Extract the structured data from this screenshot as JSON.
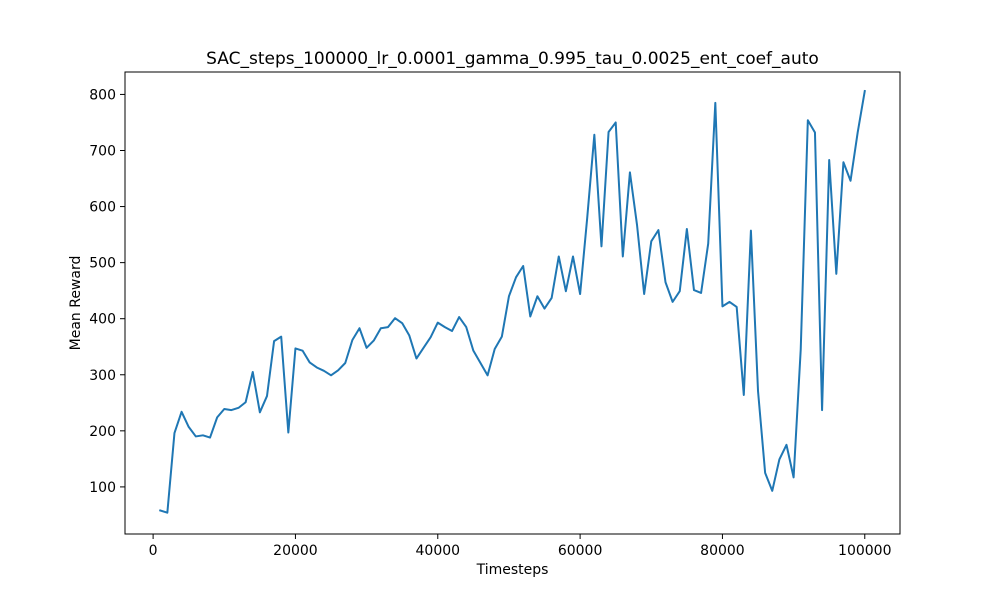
{
  "chart_data": {
    "type": "line",
    "title": "SAC_steps_100000_lr_0.0001_gamma_0.995_tau_0.0025_ent_coef_auto",
    "xlabel": "Timesteps",
    "ylabel": "Mean Reward",
    "xlim": [
      -3950,
      104950
    ],
    "ylim": [
      16,
      840
    ],
    "xticks": [
      0,
      20000,
      40000,
      60000,
      80000,
      100000
    ],
    "yticks": [
      100,
      200,
      300,
      400,
      500,
      600,
      700,
      800
    ],
    "grid": false,
    "series": [
      {
        "color": "#1f77b4",
        "x": [
          1000,
          2000,
          3000,
          4000,
          5000,
          6000,
          7000,
          8000,
          9000,
          10000,
          11000,
          12000,
          13000,
          14000,
          15000,
          16000,
          17000,
          18000,
          19000,
          20000,
          21000,
          22000,
          23000,
          24000,
          25000,
          26000,
          27000,
          28000,
          29000,
          30000,
          31000,
          32000,
          33000,
          34000,
          35000,
          36000,
          37000,
          38000,
          39000,
          40000,
          41000,
          42000,
          43000,
          44000,
          45000,
          46000,
          47000,
          48000,
          49000,
          50000,
          51000,
          52000,
          53000,
          54000,
          55000,
          56000,
          57000,
          58000,
          59000,
          60000,
          61000,
          62000,
          63000,
          64000,
          65000,
          66000,
          67000,
          68000,
          69000,
          70000,
          71000,
          72000,
          73000,
          74000,
          75000,
          76000,
          77000,
          78000,
          79000,
          80000,
          81000,
          82000,
          83000,
          84000,
          85000,
          86000,
          87000,
          88000,
          89000,
          90000,
          91000,
          92000,
          93000,
          94000,
          95000,
          96000,
          97000,
          98000,
          99000,
          100000
        ],
        "y": [
          58,
          54,
          196,
          234,
          207,
          190,
          192,
          188,
          224,
          239,
          237,
          241,
          251,
          305,
          233,
          262,
          360,
          368,
          197,
          347,
          343,
          322,
          313,
          307,
          299,
          308,
          321,
          362,
          383,
          348,
          361,
          383,
          385,
          401,
          392,
          370,
          329,
          348,
          367,
          393,
          385,
          378,
          403,
          385,
          343,
          321,
          299,
          346,
          368,
          440,
          474,
          494,
          404,
          440,
          418,
          437,
          511,
          449,
          511,
          444,
          580,
          728,
          529,
          733,
          750,
          511,
          661,
          567,
          444,
          538,
          558,
          465,
          430,
          449,
          560,
          451,
          446,
          534,
          785,
          422,
          430,
          421,
          264,
          557,
          271,
          125,
          93,
          149,
          175,
          117,
          345,
          754,
          732,
          237,
          683,
          480,
          679,
          646,
          732,
          806
        ]
      }
    ]
  }
}
